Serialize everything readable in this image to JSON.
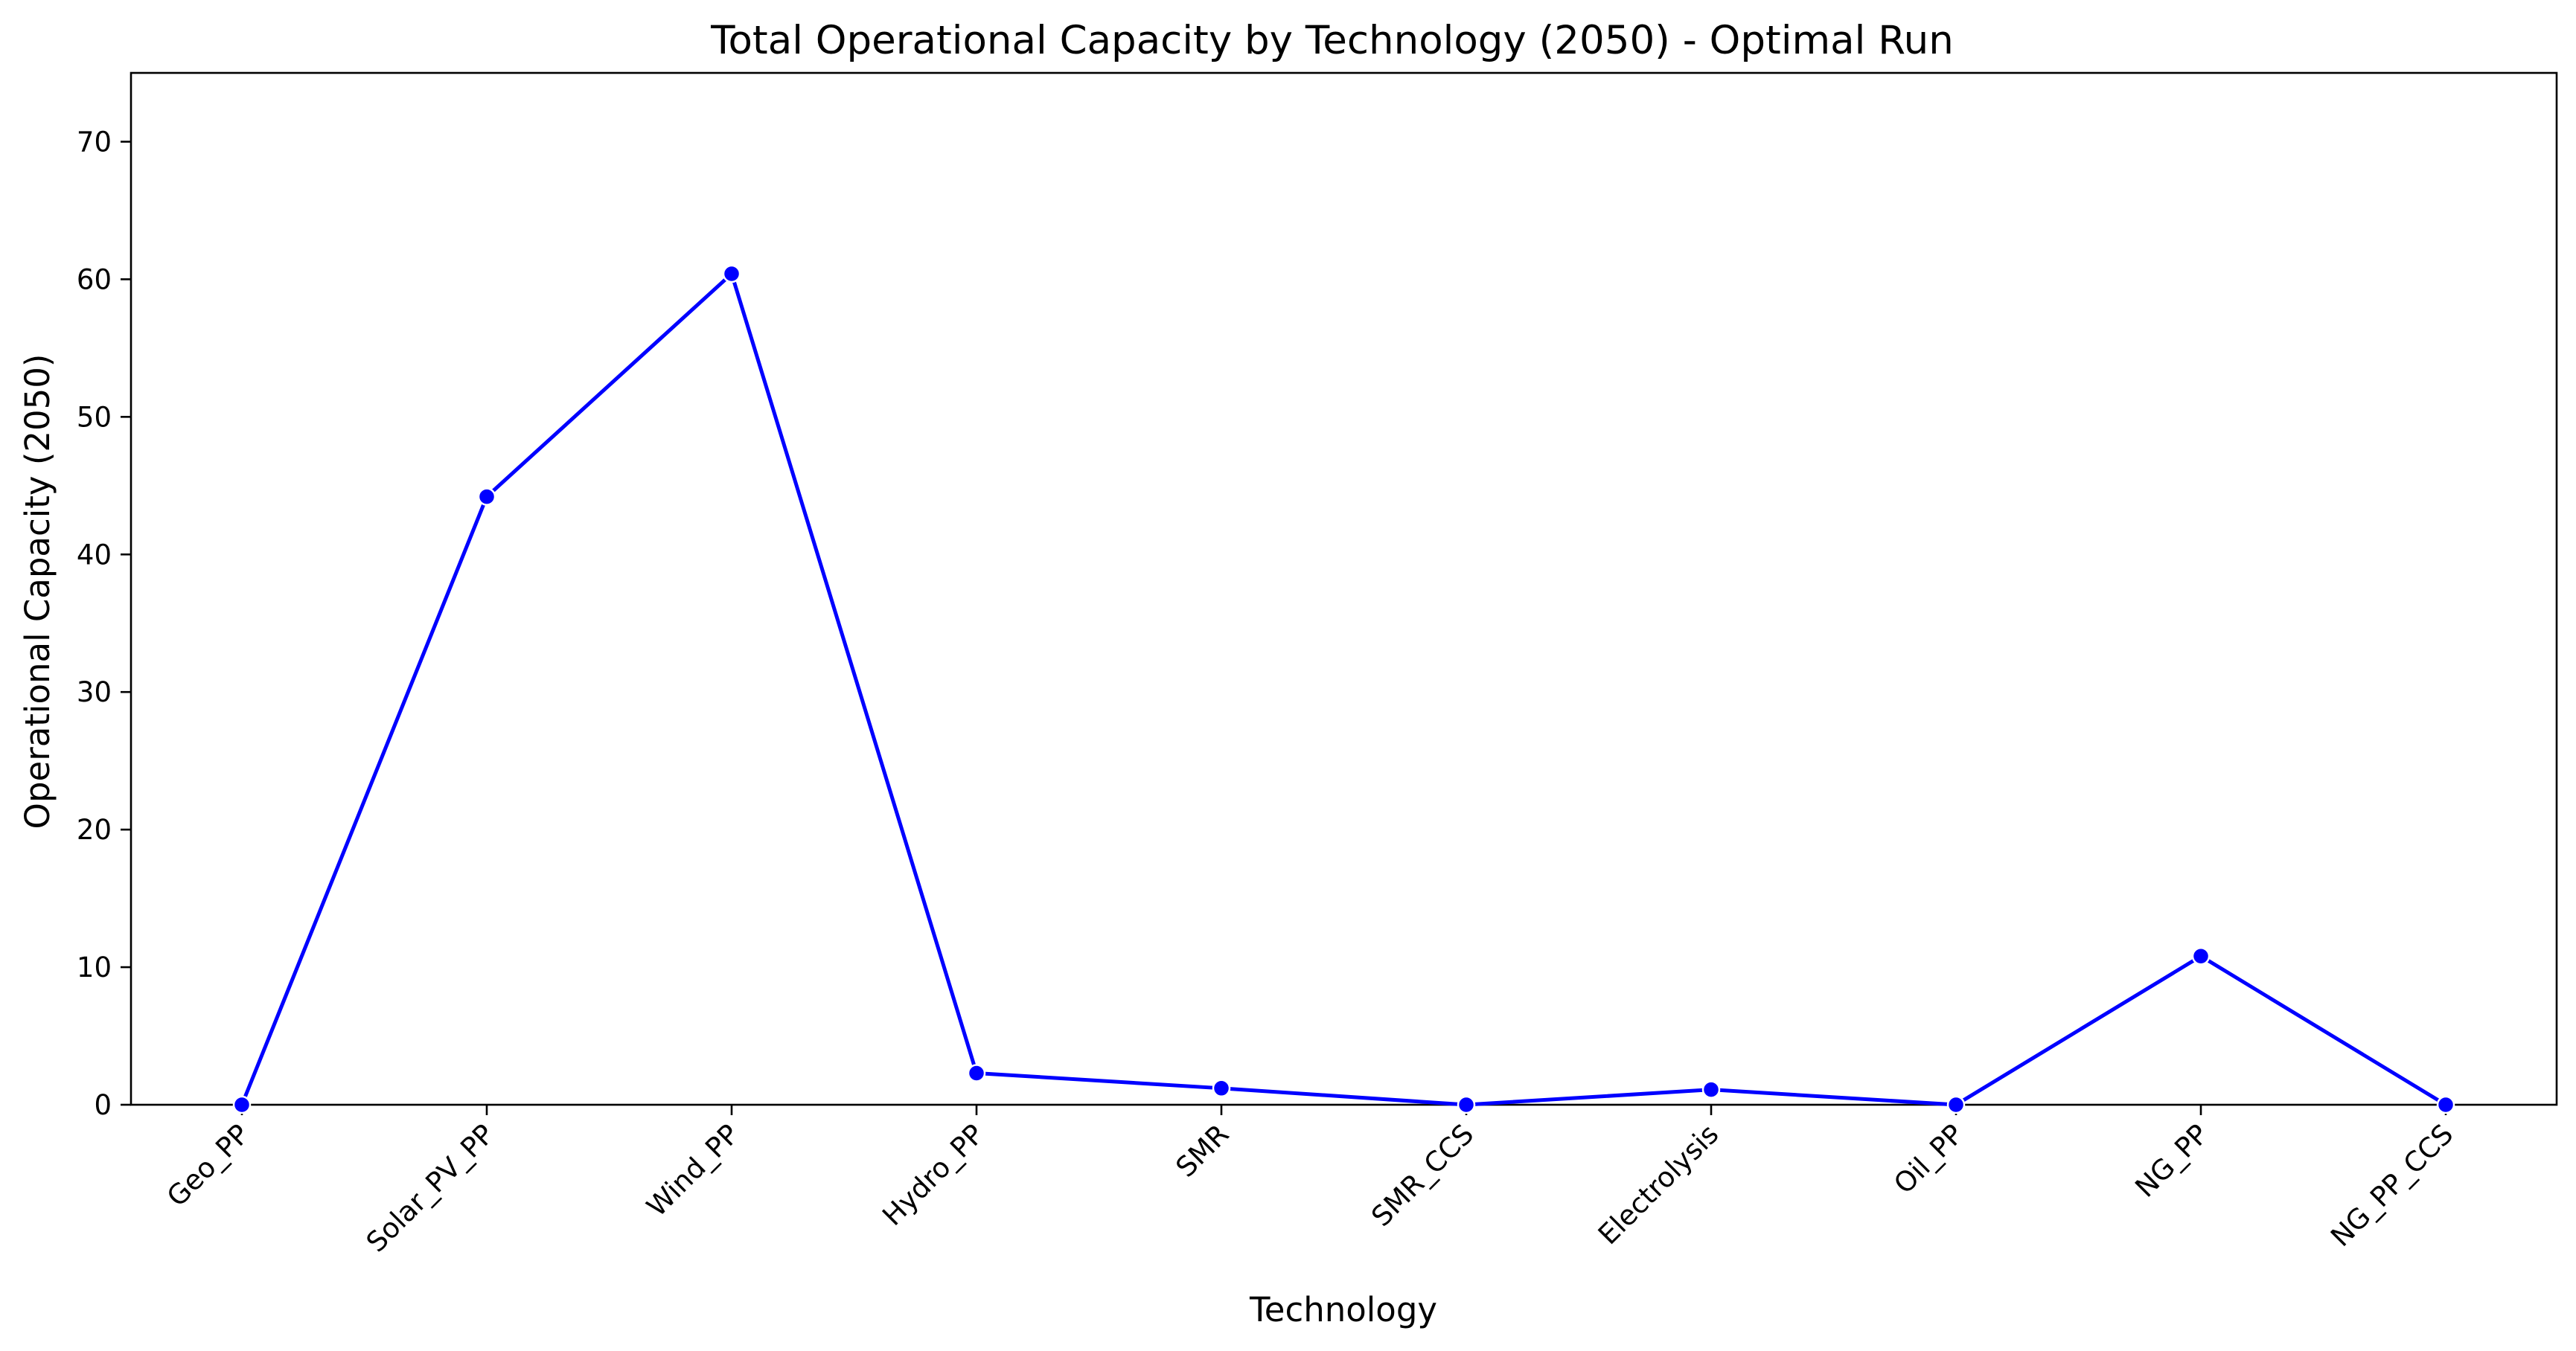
{
  "chart_data": {
    "type": "line",
    "title": "Total Operational Capacity by Technology (2050) - Optimal Run",
    "xlabel": "Technology",
    "ylabel": "Operational Capacity (2050)",
    "categories": [
      "Geo_PP",
      "Solar_PV_PP",
      "Wind_PP",
      "Hydro_PP",
      "SMR",
      "SMR_CCS",
      "Electrolysis",
      "Oil_PP",
      "NG_PP",
      "NG_PP_CCS"
    ],
    "series": [
      {
        "values": [
          0,
          44.2,
          60.4,
          2.3,
          1.2,
          0,
          1.1,
          0,
          10.8,
          0
        ],
        "color": "#0000ff"
      }
    ],
    "ylim": [
      0,
      75
    ],
    "yticks": [
      0,
      10,
      20,
      30,
      40,
      50,
      60,
      70
    ],
    "grid": false,
    "legend": "none"
  }
}
